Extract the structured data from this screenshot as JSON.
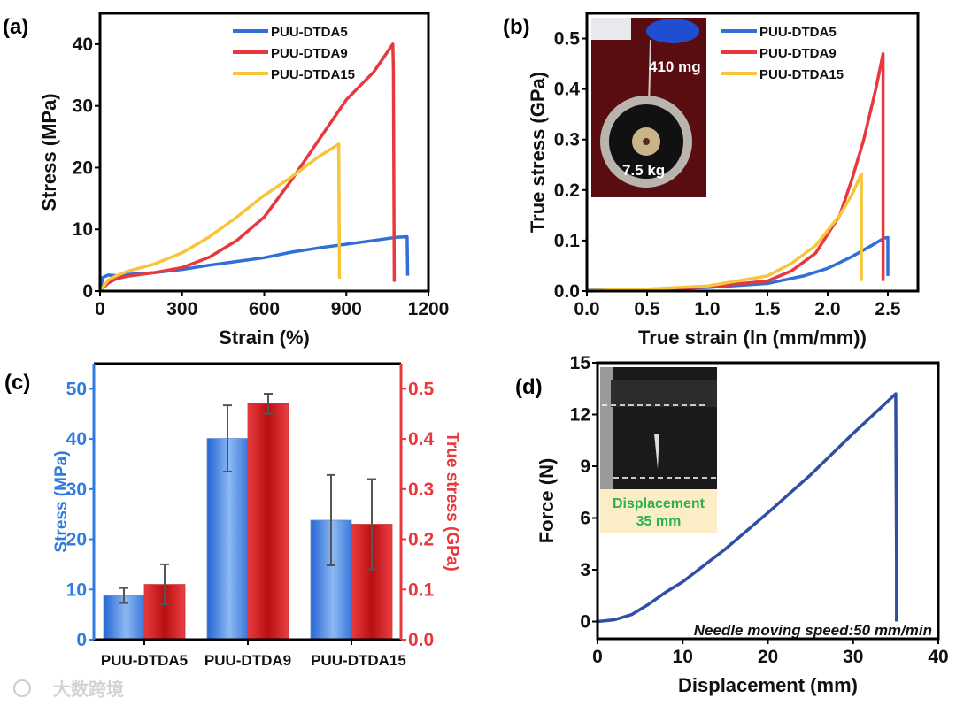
{
  "colors": {
    "blue": "#2f6fd6",
    "red": "#e8383d",
    "yellow": "#f8c53a",
    "navy": "#2e4fa3",
    "axis_blue": "#2f7be0",
    "axis_red": "#e8383d",
    "inset_green": "#2db14b"
  },
  "chart_data": [
    {
      "panel": "(a)",
      "type": "line",
      "xlabel": "Strain (%)",
      "ylabel": "Stress (MPa)",
      "xlim": [
        0,
        1200
      ],
      "ylim": [
        0,
        45
      ],
      "xticks": [
        "0",
        "300",
        "600",
        "900",
        "1200"
      ],
      "yticks": [
        "0",
        "10",
        "20",
        "30",
        "40"
      ],
      "legend_position": "top-right",
      "series": [
        {
          "name": "PUU-DTDA5",
          "color": "#2f6fd6",
          "points": [
            [
              0,
              0
            ],
            [
              10,
              2.2
            ],
            [
              30,
              2.6
            ],
            [
              60,
              2.5
            ],
            [
              100,
              2.7
            ],
            [
              200,
              3
            ],
            [
              300,
              3.5
            ],
            [
              400,
              4.2
            ],
            [
              500,
              4.8
            ],
            [
              600,
              5.4
            ],
            [
              700,
              6.3
            ],
            [
              800,
              7
            ],
            [
              900,
              7.6
            ],
            [
              1000,
              8.2
            ],
            [
              1080,
              8.7
            ],
            [
              1122,
              8.8
            ],
            [
              1124,
              2.5
            ]
          ]
        },
        {
          "name": "PUU-DTDA9",
          "color": "#e8383d",
          "points": [
            [
              0,
              0
            ],
            [
              30,
              1.3
            ],
            [
              60,
              2
            ],
            [
              100,
              2.4
            ],
            [
              200,
              3
            ],
            [
              300,
              3.8
            ],
            [
              400,
              5.5
            ],
            [
              500,
              8.2
            ],
            [
              600,
              12
            ],
            [
              700,
              18
            ],
            [
              800,
              24.5
            ],
            [
              900,
              31
            ],
            [
              1000,
              35.5
            ],
            [
              1070,
              40
            ],
            [
              1072,
              36
            ],
            [
              1075,
              1.5
            ]
          ]
        },
        {
          "name": "PUU-DTDA15",
          "color": "#f8c53a",
          "points": [
            [
              0,
              0
            ],
            [
              30,
              1.8
            ],
            [
              60,
              2.5
            ],
            [
              100,
              3.2
            ],
            [
              200,
              4.4
            ],
            [
              300,
              6.2
            ],
            [
              400,
              8.8
            ],
            [
              500,
              12
            ],
            [
              600,
              15.5
            ],
            [
              700,
              18.5
            ],
            [
              800,
              21.8
            ],
            [
              872,
              23.8
            ],
            [
              875,
              2
            ]
          ]
        }
      ]
    },
    {
      "panel": "(b)",
      "type": "line",
      "xlabel": "True strain (ln (mm/mm))",
      "ylabel": "True stress (GPa)",
      "xlim": [
        0,
        2.75
      ],
      "ylim": [
        0,
        0.55
      ],
      "xticks": [
        "0.0",
        "0.5",
        "1.0",
        "1.5",
        "2.0",
        "2.5"
      ],
      "yticks": [
        "0.0",
        "0.1",
        "0.2",
        "0.3",
        "0.4",
        "0.5"
      ],
      "legend_position": "top-right",
      "inset": {
        "label_top": "410 mg",
        "label_bottom": "7.5 kg"
      },
      "series": [
        {
          "name": "PUU-DTDA5",
          "color": "#2f6fd6",
          "points": [
            [
              0,
              0.002
            ],
            [
              0.5,
              0.003
            ],
            [
              1.0,
              0.007
            ],
            [
              1.5,
              0.015
            ],
            [
              1.8,
              0.03
            ],
            [
              2.0,
              0.045
            ],
            [
              2.2,
              0.068
            ],
            [
              2.4,
              0.095
            ],
            [
              2.47,
              0.105
            ],
            [
              2.5,
              0.106
            ],
            [
              2.5,
              0.03
            ]
          ]
        },
        {
          "name": "PUU-DTDA9",
          "color": "#e8383d",
          "points": [
            [
              0,
              0
            ],
            [
              0.5,
              0.003
            ],
            [
              1.0,
              0.008
            ],
            [
              1.5,
              0.02
            ],
            [
              1.7,
              0.04
            ],
            [
              1.9,
              0.075
            ],
            [
              2.1,
              0.15
            ],
            [
              2.2,
              0.22
            ],
            [
              2.3,
              0.3
            ],
            [
              2.4,
              0.4
            ],
            [
              2.46,
              0.47
            ],
            [
              2.46,
              0.02
            ]
          ]
        },
        {
          "name": "PUU-DTDA15",
          "color": "#f8c53a",
          "points": [
            [
              0,
              0.001
            ],
            [
              0.5,
              0.004
            ],
            [
              1.0,
              0.01
            ],
            [
              1.5,
              0.03
            ],
            [
              1.7,
              0.055
            ],
            [
              1.9,
              0.09
            ],
            [
              2.1,
              0.15
            ],
            [
              2.2,
              0.19
            ],
            [
              2.28,
              0.232
            ],
            [
              2.28,
              0.02
            ]
          ]
        }
      ]
    },
    {
      "panel": "(c)",
      "type": "bar",
      "categories": [
        "PUU-DTDA5",
        "PUU-DTDA9",
        "PUU-DTDA15"
      ],
      "ylabel": "Stress (MPa)",
      "ylabel_right": "True stress (GPa)",
      "ylim": [
        0,
        55
      ],
      "ylim_right": [
        0,
        0.55
      ],
      "yticks": [
        "0",
        "10",
        "20",
        "30",
        "40",
        "50"
      ],
      "yticks_right": [
        "0.0",
        "0.1",
        "0.2",
        "0.3",
        "0.4",
        "0.5"
      ],
      "series": [
        {
          "name": "Stress",
          "axis": "left",
          "values": [
            8.8,
            40.1,
            23.8
          ],
          "errors": [
            1.5,
            6.6,
            9.0
          ]
        },
        {
          "name": "True stress",
          "axis": "right",
          "values": [
            0.11,
            0.47,
            0.23
          ],
          "errors": [
            0.04,
            0.02,
            0.09
          ]
        }
      ]
    },
    {
      "panel": "(d)",
      "type": "line",
      "xlabel": "Displacement (mm)",
      "ylabel": "Force (N)",
      "xlim": [
        0,
        40
      ],
      "ylim": [
        -1,
        15
      ],
      "xticks": [
        "0",
        "10",
        "20",
        "30",
        "40"
      ],
      "yticks": [
        "0",
        "3",
        "6",
        "9",
        "12",
        "15"
      ],
      "annotation": "Needle moving speed:50 mm/min",
      "inset": {
        "line1": "Displacement",
        "line2": "35 mm"
      },
      "series": [
        {
          "name": "Force",
          "color": "#2e4fa3",
          "points": [
            [
              0,
              0
            ],
            [
              2,
              0.1
            ],
            [
              4,
              0.4
            ],
            [
              6,
              1
            ],
            [
              8,
              1.7
            ],
            [
              10,
              2.3
            ],
            [
              15,
              4.2
            ],
            [
              20,
              6.3
            ],
            [
              25,
              8.5
            ],
            [
              30,
              10.9
            ],
            [
              35,
              13.2
            ],
            [
              35.1,
              3.5
            ],
            [
              35.1,
              0
            ]
          ]
        }
      ]
    }
  ],
  "watermark": "大数跨境"
}
